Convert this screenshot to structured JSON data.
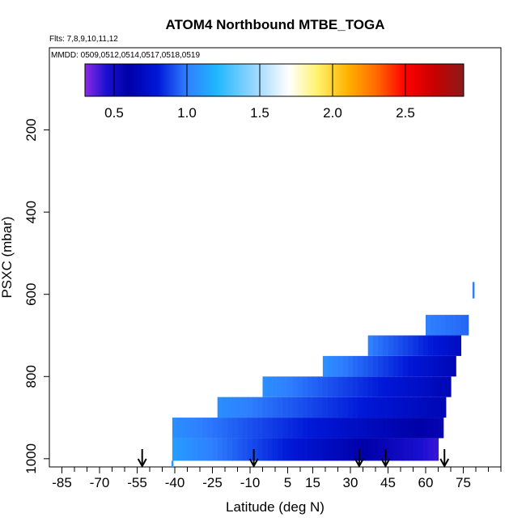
{
  "chart_data": {
    "type": "heatmap",
    "title": "ATOM4 Northbound MTBE_TOGA",
    "flights_text": "Flts: 7,8,9,10,11,12",
    "dates_text": "MMDD: 0509,0512,0514,0517,0518,0519",
    "xlabel": "Latitude (deg N)",
    "ylabel": "PSXC (mbar)",
    "xlim": [
      -90,
      90
    ],
    "ylim": [
      1020,
      0
    ],
    "x_ticks": [
      -85,
      -70,
      -55,
      -40,
      -25,
      -10,
      5,
      15,
      30,
      45,
      60,
      75
    ],
    "x_tick_labels": [
      "-85",
      "-70",
      "-55",
      "-40",
      "-25",
      "-10",
      "5",
      "15",
      "30",
      "45",
      "60",
      "75"
    ],
    "y_ticks": [
      200,
      400,
      600,
      800,
      1000
    ],
    "y_tick_labels": [
      "200",
      "400",
      "600",
      "800",
      "1000"
    ],
    "colorbar": {
      "min": 0.3,
      "max": 2.9,
      "ticks": [
        0.5,
        1.0,
        1.5,
        2.0,
        2.5
      ],
      "tick_labels": [
        "0.5",
        "1.0",
        "1.5",
        "2.0",
        "2.5"
      ],
      "stops": [
        {
          "v": 0.3,
          "c": "#8a2be2"
        },
        {
          "v": 0.45,
          "c": "#1a0fd0"
        },
        {
          "v": 0.6,
          "c": "#0000a8"
        },
        {
          "v": 0.8,
          "c": "#0018d8"
        },
        {
          "v": 1.0,
          "c": "#2f7fff"
        },
        {
          "v": 1.2,
          "c": "#1fb6ff"
        },
        {
          "v": 1.5,
          "c": "#a8dcff"
        },
        {
          "v": 1.7,
          "c": "#ffffff"
        },
        {
          "v": 1.9,
          "c": "#fff26b"
        },
        {
          "v": 2.1,
          "c": "#ffb300"
        },
        {
          "v": 2.3,
          "c": "#ff6a00"
        },
        {
          "v": 2.5,
          "c": "#ff0000"
        },
        {
          "v": 2.7,
          "c": "#c80000"
        },
        {
          "v": 2.9,
          "c": "#8b1a1a"
        }
      ]
    },
    "pressure_bands": [
      {
        "p_top": 950,
        "p_bot": 1005,
        "lat_start": -41,
        "lat_end": 65,
        "v_start": 1.1,
        "v_end": 0.4
      },
      {
        "p_top": 900,
        "p_bot": 950,
        "lat_start": -41,
        "lat_end": 67,
        "v_start": 1.05,
        "v_end": 0.55
      },
      {
        "p_top": 850,
        "p_bot": 900,
        "lat_start": -23,
        "lat_end": 68,
        "v_start": 1.05,
        "v_end": 0.65
      },
      {
        "p_top": 800,
        "p_bot": 850,
        "lat_start": -5,
        "lat_end": 70,
        "v_start": 1.05,
        "v_end": 0.65
      },
      {
        "p_top": 750,
        "p_bot": 800,
        "lat_start": 19,
        "lat_end": 72,
        "v_start": 1.05,
        "v_end": 0.65
      },
      {
        "p_top": 700,
        "p_bot": 750,
        "lat_start": 37,
        "lat_end": 74,
        "v_start": 1.0,
        "v_end": 0.7
      },
      {
        "p_top": 650,
        "p_bot": 700,
        "lat_start": 60,
        "lat_end": 77,
        "v_start": 1.0,
        "v_end": 0.95
      }
    ],
    "isolated_points": [
      {
        "lat": 79,
        "p_top": 570,
        "p_bot": 610,
        "v": 1.0
      },
      {
        "lat": -41,
        "p_top": 1005,
        "p_bot": 1020,
        "v": 1.1
      }
    ],
    "flight_arrows_lat": [
      -53,
      -8.5,
      33.5,
      44,
      67.5
    ]
  }
}
